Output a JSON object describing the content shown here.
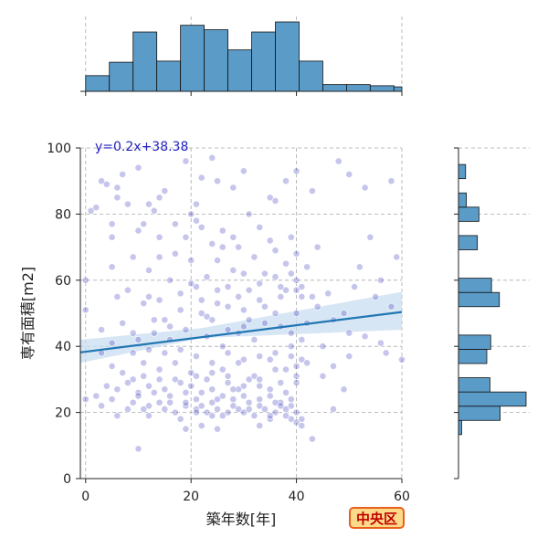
{
  "chart_data": {
    "type": "scatter",
    "xlabel": "築年数[年]",
    "ylabel": "専有面積[m2]",
    "xlim": [
      -1,
      60
    ],
    "ylim": [
      0,
      100
    ],
    "x_ticks": [
      0,
      20,
      40,
      60
    ],
    "y_ticks": [
      0,
      20,
      40,
      60,
      80,
      100
    ],
    "grid": true,
    "point_color": "#3333bb",
    "line_color": "#1f77b4",
    "band_color": "#c6dbef",
    "hist_color": "#5b9bc8",
    "regression": {
      "label": "y=0.2x+38.38",
      "slope": 0.2,
      "intercept": 38.38,
      "ci_at_xmin": [
        35,
        42
      ],
      "ci_at_center": [
        42.5,
        45.5
      ],
      "ci_at_xmax": [
        45,
        56.5
      ],
      "center_x": 22
    },
    "points": [
      [
        0,
        60
      ],
      [
        0,
        51
      ],
      [
        0,
        24
      ],
      [
        1,
        81
      ],
      [
        2,
        82
      ],
      [
        3,
        90
      ],
      [
        4,
        89
      ],
      [
        5,
        77
      ],
      [
        6,
        88
      ],
      [
        6,
        85
      ],
      [
        7,
        92
      ],
      [
        8,
        83
      ],
      [
        10,
        94
      ],
      [
        11,
        77
      ],
      [
        12,
        83
      ],
      [
        13,
        81
      ],
      [
        14,
        85
      ],
      [
        15,
        87
      ],
      [
        19,
        96
      ],
      [
        20,
        80
      ],
      [
        21,
        83
      ],
      [
        22,
        91
      ],
      [
        24,
        97
      ],
      [
        25,
        90
      ],
      [
        28,
        88
      ],
      [
        30,
        93
      ],
      [
        31,
        80
      ],
      [
        35,
        85
      ],
      [
        36,
        84
      ],
      [
        38,
        90
      ],
      [
        40,
        93
      ],
      [
        43,
        87
      ],
      [
        48,
        96
      ],
      [
        50,
        92
      ],
      [
        53,
        88
      ],
      [
        58,
        90
      ],
      [
        5,
        73
      ],
      [
        10,
        75
      ],
      [
        14,
        67
      ],
      [
        17,
        68
      ],
      [
        19,
        73
      ],
      [
        22,
        76
      ],
      [
        26,
        70
      ],
      [
        28,
        73
      ],
      [
        32,
        67
      ],
      [
        35,
        72
      ],
      [
        39,
        73
      ],
      [
        42,
        64
      ],
      [
        52,
        64
      ],
      [
        54,
        73
      ],
      [
        56,
        60
      ],
      [
        59,
        67
      ],
      [
        55,
        55
      ],
      [
        5,
        64
      ],
      [
        9,
        67
      ],
      [
        12,
        63
      ],
      [
        16,
        60
      ],
      [
        21,
        58
      ],
      [
        23,
        61
      ],
      [
        25,
        66
      ],
      [
        27,
        58
      ],
      [
        30,
        62
      ],
      [
        33,
        59
      ],
      [
        36,
        61
      ],
      [
        38,
        57
      ],
      [
        40,
        60
      ],
      [
        44,
        52
      ],
      [
        49,
        50
      ],
      [
        51,
        58
      ],
      [
        58,
        52
      ],
      [
        6,
        55
      ],
      [
        11,
        53
      ],
      [
        14,
        54
      ],
      [
        18,
        56
      ],
      [
        22,
        50
      ],
      [
        25,
        53
      ],
      [
        29,
        55
      ],
      [
        31,
        48
      ],
      [
        34,
        52
      ],
      [
        37,
        55
      ],
      [
        40,
        50
      ],
      [
        42,
        47
      ],
      [
        45,
        40
      ],
      [
        53,
        43
      ],
      [
        56,
        41
      ],
      [
        57,
        38
      ],
      [
        60,
        36
      ],
      [
        3,
        45
      ],
      [
        7,
        47
      ],
      [
        10,
        42
      ],
      [
        13,
        44
      ],
      [
        16,
        42
      ],
      [
        19,
        45
      ],
      [
        23,
        43
      ],
      [
        26,
        40
      ],
      [
        29,
        44
      ],
      [
        32,
        42
      ],
      [
        36,
        38
      ],
      [
        39,
        40
      ],
      [
        41,
        36
      ],
      [
        47,
        34
      ],
      [
        50,
        37
      ],
      [
        3,
        38
      ],
      [
        5,
        34
      ],
      [
        7,
        32
      ],
      [
        9,
        30
      ],
      [
        11,
        35
      ],
      [
        14,
        33
      ],
      [
        17,
        35
      ],
      [
        20,
        32
      ],
      [
        23,
        30
      ],
      [
        26,
        33
      ],
      [
        29,
        35
      ],
      [
        32,
        31
      ],
      [
        35,
        36
      ],
      [
        38,
        33
      ],
      [
        40,
        31
      ],
      [
        42,
        35
      ],
      [
        4,
        28
      ],
      [
        6,
        27
      ],
      [
        8,
        29
      ],
      [
        10,
        26
      ],
      [
        12,
        28
      ],
      [
        15,
        27
      ],
      [
        17,
        30
      ],
      [
        20,
        28
      ],
      [
        22,
        26
      ],
      [
        24,
        27
      ],
      [
        27,
        29
      ],
      [
        29,
        27
      ],
      [
        31,
        30
      ],
      [
        33,
        28
      ],
      [
        35,
        27
      ],
      [
        38,
        26
      ],
      [
        40,
        29
      ],
      [
        3,
        22
      ],
      [
        5,
        24
      ],
      [
        8,
        21
      ],
      [
        10,
        25
      ],
      [
        12,
        22
      ],
      [
        14,
        23
      ],
      [
        17,
        20
      ],
      [
        19,
        22
      ],
      [
        21,
        21
      ],
      [
        23,
        20
      ],
      [
        25,
        21
      ],
      [
        26,
        19
      ],
      [
        28,
        22
      ],
      [
        30,
        20
      ],
      [
        32,
        19
      ],
      [
        34,
        21
      ],
      [
        36,
        20
      ],
      [
        38,
        21
      ],
      [
        39,
        18
      ],
      [
        40,
        20
      ],
      [
        9,
        23
      ],
      [
        11,
        21
      ],
      [
        16,
        23
      ],
      [
        19,
        26
      ],
      [
        21,
        24
      ],
      [
        24,
        23
      ],
      [
        26,
        25
      ],
      [
        28,
        24
      ],
      [
        31,
        23
      ],
      [
        33,
        24
      ],
      [
        35,
        25
      ],
      [
        37,
        23
      ],
      [
        39,
        24
      ],
      [
        40,
        17
      ],
      [
        41,
        16
      ],
      [
        43,
        12
      ],
      [
        45,
        31
      ],
      [
        47,
        21
      ],
      [
        49,
        27
      ],
      [
        10,
        9
      ],
      [
        19,
        15
      ],
      [
        22,
        16
      ],
      [
        25,
        15
      ],
      [
        33,
        16
      ],
      [
        35,
        18
      ],
      [
        38,
        19
      ],
      [
        41,
        18
      ],
      [
        2,
        25
      ],
      [
        6,
        19
      ],
      [
        9,
        44
      ],
      [
        13,
        48
      ],
      [
        16,
        46
      ],
      [
        20,
        66
      ],
      [
        24,
        48
      ],
      [
        27,
        45
      ],
      [
        30,
        51
      ],
      [
        34,
        47
      ],
      [
        37,
        46
      ],
      [
        41,
        55
      ],
      [
        22,
        54
      ],
      [
        25,
        57
      ],
      [
        28,
        63
      ],
      [
        31,
        57
      ],
      [
        34,
        62
      ],
      [
        37,
        58
      ],
      [
        39,
        62
      ],
      [
        40,
        57
      ],
      [
        41,
        58
      ],
      [
        43,
        55
      ],
      [
        8,
        57
      ],
      [
        12,
        55
      ],
      [
        15,
        48
      ],
      [
        18,
        51
      ],
      [
        20,
        59
      ],
      [
        23,
        49
      ],
      [
        27,
        52
      ],
      [
        30,
        46
      ],
      [
        33,
        54
      ],
      [
        36,
        50
      ],
      [
        39,
        44
      ],
      [
        41,
        42
      ],
      [
        5,
        41
      ],
      [
        9,
        38
      ],
      [
        12,
        39
      ],
      [
        15,
        38
      ],
      [
        18,
        39
      ],
      [
        21,
        37
      ],
      [
        24,
        35
      ],
      [
        27,
        38
      ],
      [
        30,
        36
      ],
      [
        33,
        37
      ],
      [
        36,
        33
      ],
      [
        39,
        37
      ],
      [
        11,
        31
      ],
      [
        14,
        30
      ],
      [
        18,
        29
      ],
      [
        21,
        31
      ],
      [
        24,
        32
      ],
      [
        27,
        31
      ],
      [
        30,
        28
      ],
      [
        33,
        30
      ],
      [
        37,
        29
      ],
      [
        40,
        34
      ],
      [
        13,
        26
      ],
      [
        16,
        25
      ],
      [
        19,
        23
      ],
      [
        22,
        22
      ],
      [
        25,
        24
      ],
      [
        28,
        27
      ],
      [
        30,
        25
      ],
      [
        33,
        22
      ],
      [
        36,
        23
      ],
      [
        39,
        22
      ],
      [
        12,
        19
      ],
      [
        15,
        21
      ],
      [
        18,
        18
      ],
      [
        21,
        20
      ],
      [
        24,
        19
      ],
      [
        27,
        20
      ],
      [
        29,
        21
      ],
      [
        31,
        21
      ],
      [
        35,
        19
      ],
      [
        37,
        22
      ],
      [
        14,
        73
      ],
      [
        17,
        77
      ],
      [
        21,
        78
      ],
      [
        24,
        71
      ],
      [
        26,
        75
      ],
      [
        29,
        70
      ],
      [
        33,
        76
      ],
      [
        36,
        69
      ],
      [
        38,
        65
      ],
      [
        40,
        68
      ],
      [
        44,
        70
      ],
      [
        46,
        56
      ],
      [
        47,
        48
      ],
      [
        50,
        44
      ]
    ],
    "hist_x": {
      "bin_edges": [
        0,
        4.5,
        9,
        13.5,
        18,
        22.5,
        27,
        31.5,
        36,
        40.5,
        45,
        49.5,
        54,
        58.5,
        60
      ],
      "counts": [
        14,
        26,
        53,
        27,
        59,
        55,
        37,
        53,
        62,
        27,
        6,
        6,
        5,
        4
      ]
    },
    "hist_y": {
      "bin_edges": [
        9,
        13.3,
        17.6,
        21.9,
        26.2,
        30.5,
        34.8,
        39.1,
        43.4,
        47.7,
        52,
        56.3,
        60.6,
        64.9,
        69.2,
        73.5,
        77.8,
        82.1,
        86.4,
        90.7,
        95,
        99.3
      ],
      "counts": [
        0,
        4,
        53,
        86,
        40,
        0,
        36,
        41,
        0,
        0,
        52,
        42,
        0,
        0,
        24,
        0,
        26,
        10,
        0,
        9,
        0
      ]
    }
  },
  "badge": {
    "text": "中央区"
  }
}
